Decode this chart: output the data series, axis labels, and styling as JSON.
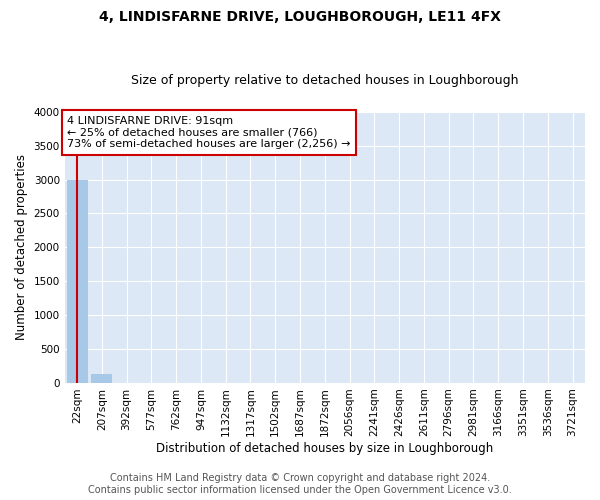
{
  "title": "4, LINDISFARNE DRIVE, LOUGHBOROUGH, LE11 4FX",
  "subtitle": "Size of property relative to detached houses in Loughborough",
  "xlabel": "Distribution of detached houses by size in Loughborough",
  "ylabel": "Number of detached properties",
  "categories": [
    "22sqm",
    "207sqm",
    "392sqm",
    "577sqm",
    "762sqm",
    "947sqm",
    "1132sqm",
    "1317sqm",
    "1502sqm",
    "1687sqm",
    "1872sqm",
    "2056sqm",
    "2241sqm",
    "2426sqm",
    "2611sqm",
    "2796sqm",
    "2981sqm",
    "3166sqm",
    "3351sqm",
    "3536sqm",
    "3721sqm"
  ],
  "values": [
    3000,
    130,
    0,
    0,
    0,
    0,
    0,
    0,
    0,
    0,
    0,
    0,
    0,
    0,
    0,
    0,
    0,
    0,
    0,
    0,
    0
  ],
  "bar_color": "#a8c8e8",
  "annotation_text": "4 LINDISFARNE DRIVE: 91sqm\n← 25% of detached houses are smaller (766)\n73% of semi-detached houses are larger (2,256) →",
  "annotation_box_color": "#ffffff",
  "annotation_border_color": "#cc0000",
  "vline_color": "#cc0000",
  "ylim": [
    0,
    4000
  ],
  "yticks": [
    0,
    500,
    1000,
    1500,
    2000,
    2500,
    3000,
    3500,
    4000
  ],
  "background_color": "#dce8f5",
  "footer_line1": "Contains HM Land Registry data © Crown copyright and database right 2024.",
  "footer_line2": "Contains public sector information licensed under the Open Government Licence v3.0.",
  "title_fontsize": 10,
  "subtitle_fontsize": 9,
  "xlabel_fontsize": 8.5,
  "ylabel_fontsize": 8.5,
  "tick_fontsize": 7.5,
  "annotation_fontsize": 8,
  "footer_fontsize": 7
}
